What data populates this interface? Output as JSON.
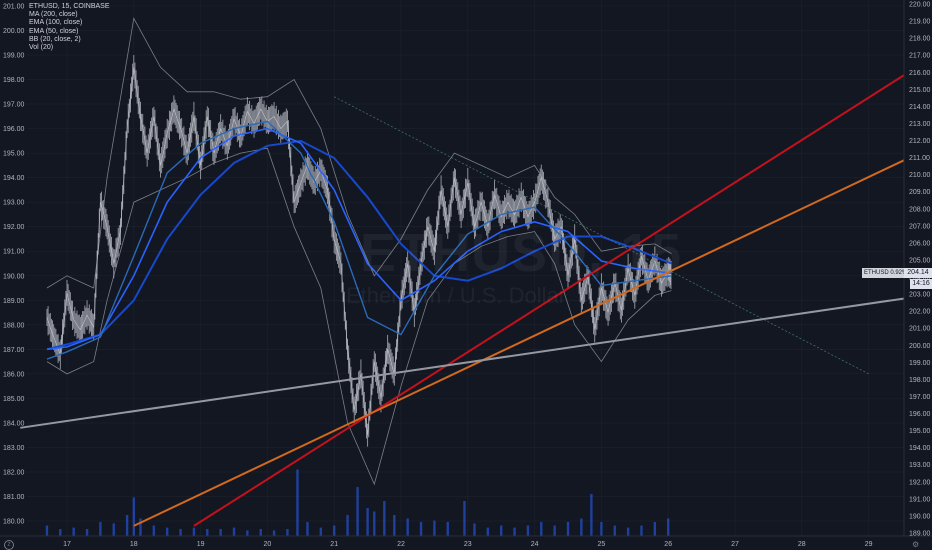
{
  "legend": {
    "title": "ETHUSD, 15, COINBASE",
    "indicators": [
      "MA (200, close)",
      "EMA (100, close)",
      "EMA (50, close)",
      "BB (20, close, 2)",
      "Vol (20)"
    ]
  },
  "watermark": {
    "symbol": "ETHUSD, 15",
    "name": "Ethereum / U.S. Dollar"
  },
  "price_tag": {
    "label": "ETHUSD 0.92%",
    "price": "204.14",
    "countdown": "14:16"
  },
  "colors": {
    "background": "#131722",
    "grid": "#1e222d",
    "candle": "#b2b5be",
    "ma200": "#1848cc",
    "ema100": "#2962ff",
    "ema50": "#2a6ab8",
    "bb": "#9598a1",
    "volume": "#2962ff",
    "trend_red": "#c4111c",
    "trend_orange": "#d2691e",
    "trend_gray": "#9598a1",
    "trend_green": "#4a7a6a"
  },
  "chart_data": {
    "type": "line",
    "left_axis": {
      "ticks": [
        "180.00",
        "181.00",
        "182.00",
        "183.00",
        "184.00",
        "185.00",
        "186.00",
        "187.00",
        "188.00",
        "189.00",
        "190.00",
        "191.00",
        "192.00",
        "193.00",
        "194.00",
        "195.00",
        "196.00",
        "197.00",
        "198.00",
        "199.00",
        "200.00",
        "201.00"
      ]
    },
    "right_axis": {
      "ticks": [
        "189.00",
        "190.00",
        "191.00",
        "192.00",
        "193.00",
        "194.00",
        "195.00",
        "196.00",
        "197.00",
        "198.00",
        "199.00",
        "200.00",
        "201.00",
        "202.00",
        "203.00",
        "204.00",
        "205.00",
        "206.00",
        "207.00",
        "208.00",
        "209.00",
        "210.00",
        "211.00",
        "212.00",
        "213.00",
        "214.00",
        "215.00",
        "216.00",
        "217.00",
        "218.00",
        "219.00",
        "220.00"
      ]
    },
    "x_ticks": [
      "17",
      "18",
      "19",
      "20",
      "21",
      "22",
      "23",
      "24",
      "25",
      "26",
      "27",
      "28",
      "29"
    ],
    "price_path": [
      [
        16.7,
        188.3
      ],
      [
        16.8,
        187.5
      ],
      [
        16.9,
        186.8
      ],
      [
        17.0,
        189.3
      ],
      [
        17.1,
        188.2
      ],
      [
        17.2,
        187.8
      ],
      [
        17.3,
        188.4
      ],
      [
        17.4,
        187.9
      ],
      [
        17.5,
        193.0
      ],
      [
        17.6,
        192.0
      ],
      [
        17.7,
        190.5
      ],
      [
        17.8,
        191.8
      ],
      [
        17.9,
        196.0
      ],
      [
        18.0,
        198.5
      ],
      [
        18.1,
        196.5
      ],
      [
        18.2,
        195.0
      ],
      [
        18.3,
        196.5
      ],
      [
        18.4,
        194.5
      ],
      [
        18.5,
        195.8
      ],
      [
        18.6,
        196.8
      ],
      [
        18.7,
        196.0
      ],
      [
        18.8,
        195.0
      ],
      [
        18.9,
        196.5
      ],
      [
        19.0,
        194.5
      ],
      [
        19.1,
        196.5
      ],
      [
        19.2,
        195.0
      ],
      [
        19.3,
        196.0
      ],
      [
        19.4,
        195.3
      ],
      [
        19.5,
        196.4
      ],
      [
        19.6,
        195.7
      ],
      [
        19.7,
        196.7
      ],
      [
        19.8,
        196.2
      ],
      [
        19.9,
        196.8
      ],
      [
        20.0,
        196.3
      ],
      [
        20.1,
        196.5
      ],
      [
        20.2,
        196.0
      ],
      [
        20.3,
        196.3
      ],
      [
        20.4,
        193.0
      ],
      [
        20.5,
        193.8
      ],
      [
        20.6,
        194.5
      ],
      [
        20.7,
        193.8
      ],
      [
        20.8,
        194.3
      ],
      [
        20.9,
        193.5
      ],
      [
        21.0,
        191.5
      ],
      [
        21.1,
        190.5
      ],
      [
        21.2,
        187.0
      ],
      [
        21.3,
        184.5
      ],
      [
        21.4,
        186.0
      ],
      [
        21.5,
        183.5
      ],
      [
        21.6,
        186.5
      ],
      [
        21.7,
        185.0
      ],
      [
        21.8,
        187.0
      ],
      [
        21.9,
        186.0
      ],
      [
        22.0,
        189.0
      ],
      [
        22.1,
        190.5
      ],
      [
        22.2,
        188.5
      ],
      [
        22.3,
        190.5
      ],
      [
        22.4,
        192.0
      ],
      [
        22.5,
        191.0
      ],
      [
        22.6,
        193.5
      ],
      [
        22.7,
        192.0
      ],
      [
        22.8,
        194.0
      ],
      [
        22.9,
        192.5
      ],
      [
        23.0,
        193.8
      ],
      [
        23.1,
        192.0
      ],
      [
        23.2,
        193.0
      ],
      [
        23.3,
        192.0
      ],
      [
        23.4,
        193.3
      ],
      [
        23.5,
        192.4
      ],
      [
        23.6,
        193.0
      ],
      [
        23.7,
        192.5
      ],
      [
        23.8,
        193.2
      ],
      [
        23.9,
        192.4
      ],
      [
        24.0,
        193.0
      ],
      [
        24.1,
        194.0
      ],
      [
        24.2,
        193.0
      ],
      [
        24.3,
        191.5
      ],
      [
        24.4,
        192.0
      ],
      [
        24.5,
        190.0
      ],
      [
        24.6,
        191.5
      ],
      [
        24.7,
        189.0
      ],
      [
        24.8,
        190.0
      ],
      [
        24.9,
        187.8
      ],
      [
        25.0,
        189.5
      ],
      [
        25.1,
        188.5
      ],
      [
        25.2,
        189.7
      ],
      [
        25.3,
        188.6
      ],
      [
        25.4,
        190.3
      ],
      [
        25.5,
        189.2
      ],
      [
        25.6,
        190.8
      ],
      [
        25.7,
        189.8
      ],
      [
        25.8,
        190.6
      ],
      [
        25.9,
        189.7
      ],
      [
        26.0,
        190.2
      ],
      [
        26.05,
        190.0
      ]
    ],
    "ma200": [
      [
        16.7,
        187.0
      ],
      [
        17.0,
        187.2
      ],
      [
        17.5,
        187.6
      ],
      [
        18.0,
        189.0
      ],
      [
        18.5,
        191.5
      ],
      [
        19.0,
        193.3
      ],
      [
        19.5,
        194.6
      ],
      [
        20.0,
        195.3
      ],
      [
        20.5,
        195.5
      ],
      [
        21.0,
        194.8
      ],
      [
        21.5,
        193.2
      ],
      [
        22.0,
        191.3
      ],
      [
        22.5,
        190.0
      ],
      [
        23.0,
        189.8
      ],
      [
        23.5,
        190.3
      ],
      [
        24.0,
        191.0
      ],
      [
        24.5,
        191.6
      ],
      [
        25.0,
        191.6
      ],
      [
        25.5,
        191.1
      ],
      [
        26.05,
        190.5
      ]
    ],
    "ema100": [
      [
        16.7,
        187.0
      ],
      [
        17.0,
        187.1
      ],
      [
        17.5,
        187.6
      ],
      [
        18.0,
        190.0
      ],
      [
        18.5,
        193.0
      ],
      [
        19.0,
        194.8
      ],
      [
        19.5,
        195.7
      ],
      [
        20.0,
        196.0
      ],
      [
        20.5,
        195.4
      ],
      [
        21.0,
        193.5
      ],
      [
        21.5,
        190.5
      ],
      [
        22.0,
        189.0
      ],
      [
        22.5,
        189.8
      ],
      [
        23.0,
        191.0
      ],
      [
        23.5,
        191.8
      ],
      [
        24.0,
        192.2
      ],
      [
        24.5,
        191.8
      ],
      [
        25.0,
        190.6
      ],
      [
        25.5,
        190.3
      ],
      [
        26.05,
        190.1
      ]
    ],
    "ema50": [
      [
        16.7,
        186.6
      ],
      [
        17.0,
        186.9
      ],
      [
        17.5,
        187.5
      ],
      [
        18.0,
        190.8
      ],
      [
        18.5,
        194.2
      ],
      [
        19.0,
        195.4
      ],
      [
        19.5,
        196.0
      ],
      [
        20.0,
        196.3
      ],
      [
        20.5,
        195.0
      ],
      [
        21.0,
        192.2
      ],
      [
        21.5,
        188.3
      ],
      [
        22.0,
        187.6
      ],
      [
        22.5,
        190.0
      ],
      [
        23.0,
        191.7
      ],
      [
        23.5,
        192.5
      ],
      [
        24.0,
        192.8
      ],
      [
        24.5,
        191.3
      ],
      [
        25.0,
        189.6
      ],
      [
        25.5,
        189.8
      ],
      [
        26.05,
        190.0
      ]
    ],
    "bb_upper": [
      [
        16.7,
        189.5
      ],
      [
        17.0,
        190.0
      ],
      [
        17.4,
        189.5
      ],
      [
        17.6,
        194.0
      ],
      [
        18.0,
        200.5
      ],
      [
        18.4,
        198.5
      ],
      [
        18.8,
        197.5
      ],
      [
        19.2,
        197.5
      ],
      [
        19.6,
        197.2
      ],
      [
        20.0,
        197.3
      ],
      [
        20.4,
        198.0
      ],
      [
        20.8,
        196.0
      ],
      [
        21.2,
        192.5
      ],
      [
        21.6,
        190.0
      ],
      [
        22.0,
        191.5
      ],
      [
        22.4,
        193.5
      ],
      [
        22.8,
        195.0
      ],
      [
        23.2,
        194.5
      ],
      [
        23.6,
        194.0
      ],
      [
        24.0,
        194.5
      ],
      [
        24.3,
        193.2
      ],
      [
        24.6,
        192.5
      ],
      [
        25.0,
        191.0
      ],
      [
        25.4,
        191.2
      ],
      [
        25.8,
        191.3
      ],
      [
        26.05,
        190.9
      ]
    ],
    "bb_lower": [
      [
        16.7,
        186.5
      ],
      [
        17.0,
        186.0
      ],
      [
        17.4,
        186.5
      ],
      [
        17.6,
        189.0
      ],
      [
        18.0,
        193.0
      ],
      [
        18.4,
        193.5
      ],
      [
        18.8,
        194.0
      ],
      [
        19.2,
        194.6
      ],
      [
        19.6,
        195.0
      ],
      [
        20.0,
        195.2
      ],
      [
        20.4,
        192.0
      ],
      [
        20.8,
        189.5
      ],
      [
        21.2,
        184.0
      ],
      [
        21.6,
        181.5
      ],
      [
        22.0,
        185.5
      ],
      [
        22.4,
        189.0
      ],
      [
        22.8,
        190.5
      ],
      [
        23.2,
        191.2
      ],
      [
        23.6,
        191.6
      ],
      [
        24.0,
        191.8
      ],
      [
        24.3,
        190.5
      ],
      [
        24.6,
        188.0
      ],
      [
        25.0,
        186.5
      ],
      [
        25.4,
        188.2
      ],
      [
        25.8,
        189.2
      ],
      [
        26.05,
        189.4
      ]
    ],
    "trendlines": [
      {
        "color_key": "trend_red",
        "from": [
          18.9,
          179.8
        ],
        "to": [
          29.6,
          198.3
        ]
      },
      {
        "color_key": "trend_orange",
        "from": [
          18.0,
          179.8
        ],
        "to": [
          29.6,
          194.8
        ]
      },
      {
        "color_key": "trend_gray",
        "from": [
          16.3,
          183.8
        ],
        "to": [
          29.6,
          189.1
        ]
      },
      {
        "color_key": "trend_green",
        "from": [
          21.0,
          197.3
        ],
        "to": [
          29.0,
          186.0
        ]
      }
    ],
    "volume": [
      [
        16.7,
        0.15
      ],
      [
        16.9,
        0.1
      ],
      [
        17.1,
        0.12
      ],
      [
        17.3,
        0.1
      ],
      [
        17.5,
        0.2
      ],
      [
        17.7,
        0.18
      ],
      [
        17.9,
        0.3
      ],
      [
        18.0,
        0.55
      ],
      [
        18.1,
        0.25
      ],
      [
        18.3,
        0.15
      ],
      [
        18.5,
        0.12
      ],
      [
        18.7,
        0.1
      ],
      [
        18.9,
        0.12
      ],
      [
        19.1,
        0.1
      ],
      [
        19.3,
        0.1
      ],
      [
        19.5,
        0.12
      ],
      [
        19.7,
        0.08
      ],
      [
        19.9,
        0.1
      ],
      [
        20.1,
        0.08
      ],
      [
        20.3,
        0.1
      ],
      [
        20.45,
        0.95
      ],
      [
        20.6,
        0.2
      ],
      [
        20.8,
        0.12
      ],
      [
        21.0,
        0.15
      ],
      [
        21.2,
        0.3
      ],
      [
        21.35,
        0.7
      ],
      [
        21.5,
        0.4
      ],
      [
        21.6,
        0.35
      ],
      [
        21.75,
        0.5
      ],
      [
        21.9,
        0.3
      ],
      [
        22.1,
        0.25
      ],
      [
        22.3,
        0.2
      ],
      [
        22.5,
        0.22
      ],
      [
        22.7,
        0.2
      ],
      [
        22.95,
        0.5
      ],
      [
        23.1,
        0.18
      ],
      [
        23.3,
        0.12
      ],
      [
        23.5,
        0.15
      ],
      [
        23.7,
        0.12
      ],
      [
        23.9,
        0.15
      ],
      [
        24.1,
        0.2
      ],
      [
        24.3,
        0.15
      ],
      [
        24.5,
        0.2
      ],
      [
        24.7,
        0.25
      ],
      [
        24.85,
        0.6
      ],
      [
        25.0,
        0.2
      ],
      [
        25.2,
        0.15
      ],
      [
        25.4,
        0.12
      ],
      [
        25.6,
        0.15
      ],
      [
        25.8,
        0.2
      ],
      [
        26.0,
        0.25
      ]
    ]
  }
}
